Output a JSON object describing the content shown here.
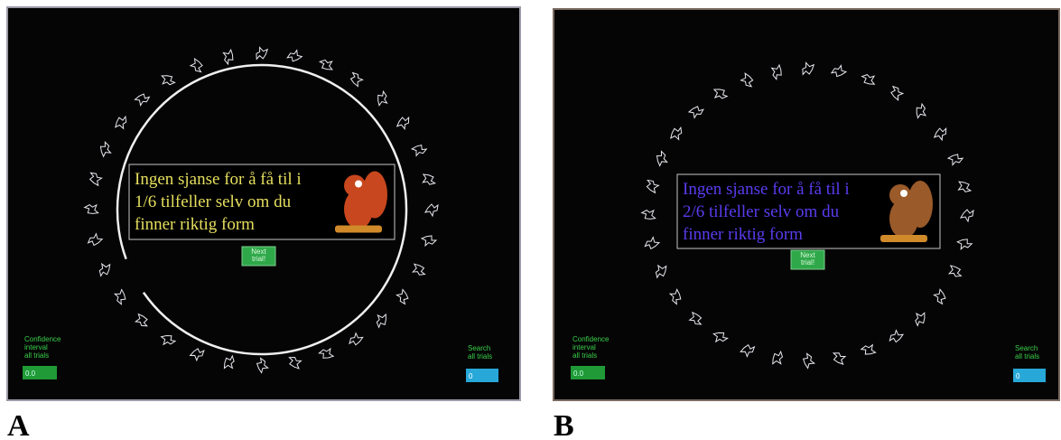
{
  "panels": [
    {
      "label": "A",
      "message": [
        "Ingen sjanse for å få til i",
        "1/6 tilfeller selv om du",
        "finner riktig form"
      ],
      "button": [
        "Next",
        "trial!"
      ],
      "confidence_label": [
        "Confidence",
        "interval",
        "all trials"
      ],
      "confidence_value": "0.0",
      "search_label": [
        "Search",
        "all trials"
      ],
      "search_value": "0"
    },
    {
      "label": "B",
      "message": [
        "Ingen sjanse for å få til i",
        "2/6 tilfeller selv om du",
        "finner riktig form"
      ],
      "button": [
        "Next",
        "trial!"
      ],
      "confidence_label": [
        "Confidence",
        "interval",
        "all trials"
      ],
      "confidence_value": "0.0",
      "search_label": [
        "Search",
        "all trials"
      ],
      "search_value": "0"
    }
  ]
}
